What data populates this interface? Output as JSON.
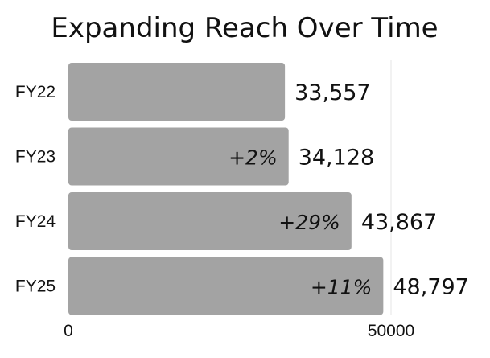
{
  "chart_data": {
    "type": "bar",
    "orientation": "horizontal",
    "title": "Expanding Reach Over Time",
    "xlabel": "",
    "ylabel": "",
    "categories": [
      "FY22",
      "FY23",
      "FY24",
      "FY25"
    ],
    "values": [
      33557,
      34128,
      43867,
      48797
    ],
    "value_labels": [
      "33,557",
      "34,128",
      "43,867",
      "48,797"
    ],
    "annotations": [
      "",
      "+2%",
      "+29%",
      "+11%"
    ],
    "xlim": [
      0,
      50000
    ],
    "xticks": [
      0,
      50000
    ],
    "xtick_labels": [
      "0",
      "50000"
    ],
    "grid": "vertical gridline at 50000",
    "legend": "none",
    "bar_color": "#a3a3a3"
  }
}
